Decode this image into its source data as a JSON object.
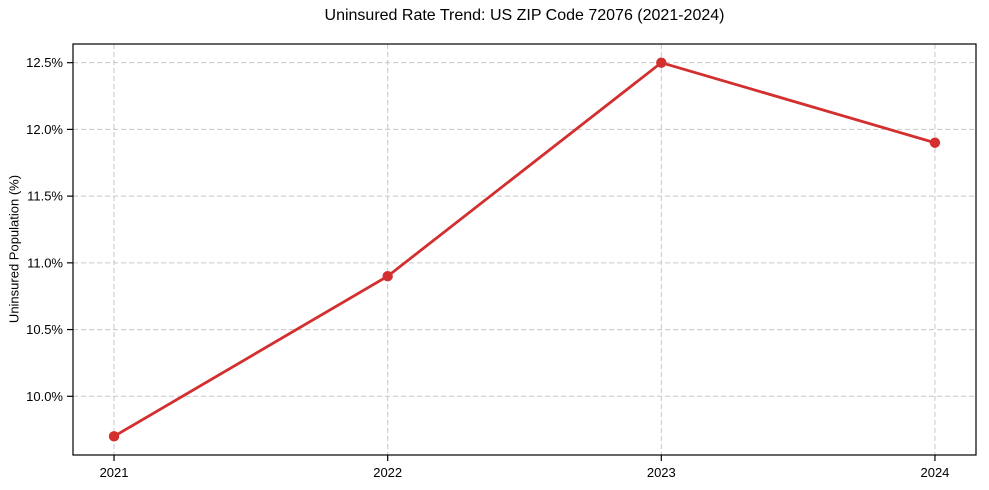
{
  "chart_data": {
    "type": "line",
    "title": "Uninsured Rate Trend: US ZIP Code 72076 (2021-2024)",
    "xlabel": "",
    "ylabel": "Uninsured Population (%)",
    "x": [
      2021,
      2022,
      2023,
      2024
    ],
    "xtick_labels": [
      "2021",
      "2022",
      "2023",
      "2024"
    ],
    "values": [
      9.7,
      10.9,
      12.5,
      11.9
    ],
    "yticks": [
      10.0,
      10.5,
      11.0,
      11.5,
      12.0,
      12.5
    ],
    "ytick_labels": [
      "10.0%",
      "10.5%",
      "11.0%",
      "11.5%",
      "12.0%",
      "12.5%"
    ],
    "ylim": [
      9.56,
      12.64
    ],
    "xlim": [
      2020.85,
      2024.15
    ],
    "grid": true,
    "grid_style": "dashed",
    "legend_position": "none",
    "colors": {
      "line": "#d32f2f",
      "marker": "#d32f2f",
      "grid": "#c7c7c7",
      "axis": "#000000",
      "text": "#000000",
      "background": "#ffffff"
    }
  }
}
